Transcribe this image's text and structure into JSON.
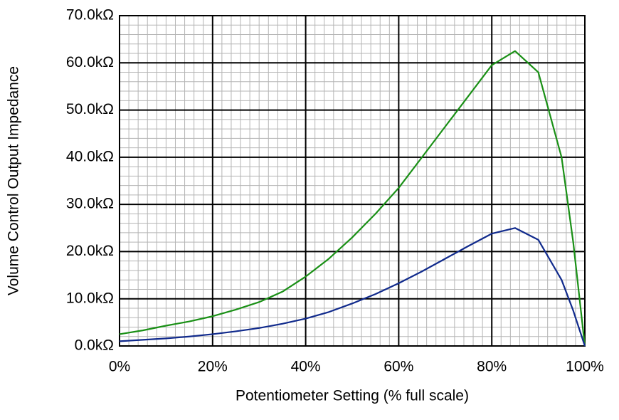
{
  "chart_data": {
    "type": "line",
    "xlabel": "Potentiometer Setting (% full scale)",
    "ylabel": "Volume Control Output Impedance",
    "x": [
      0,
      5,
      10,
      15,
      20,
      25,
      30,
      35,
      40,
      45,
      50,
      55,
      60,
      65,
      70,
      75,
      80,
      85,
      90,
      95,
      97.5,
      100
    ],
    "series": [
      {
        "name": "Green curve",
        "color": "#1a9016",
        "values": [
          2.5,
          3.3,
          4.3,
          5.2,
          6.3,
          7.7,
          9.3,
          11.5,
          14.7,
          18.5,
          23,
          28,
          33.5,
          40,
          46.5,
          53,
          59.5,
          62.5,
          58,
          40,
          22,
          0
        ]
      },
      {
        "name": "Blue curve",
        "color": "#102a8c",
        "values": [
          1,
          1.3,
          1.6,
          2,
          2.5,
          3.1,
          3.8,
          4.7,
          5.8,
          7.2,
          9,
          11,
          13.3,
          15.8,
          18.5,
          21.2,
          23.8,
          25,
          22.5,
          14,
          7.5,
          0
        ]
      }
    ],
    "xlim": [
      0,
      100
    ],
    "xticks": [
      {
        "value": 0,
        "label": "0%"
      },
      {
        "value": 20,
        "label": "20%"
      },
      {
        "value": 40,
        "label": "40%"
      },
      {
        "value": 60,
        "label": "60%"
      },
      {
        "value": 80,
        "label": "80%"
      },
      {
        "value": 100,
        "label": "100%"
      }
    ],
    "ylim": [
      0,
      70
    ],
    "yticks": [
      {
        "value": 0,
        "label": "0.0kΩ"
      },
      {
        "value": 10,
        "label": "10.0kΩ"
      },
      {
        "value": 20,
        "label": "20.0kΩ"
      },
      {
        "value": 30,
        "label": "30.0kΩ"
      },
      {
        "value": 40,
        "label": "40.0kΩ"
      },
      {
        "value": 50,
        "label": "50.0kΩ"
      },
      {
        "value": 60,
        "label": "60.0kΩ"
      },
      {
        "value": 70,
        "label": "70.0kΩ"
      }
    ],
    "xminorticks": [
      0,
      2,
      4,
      6,
      8,
      10,
      12,
      14,
      16,
      18,
      20,
      22,
      24,
      26,
      28,
      30,
      32,
      34,
      36,
      38,
      40,
      42,
      44,
      46,
      48,
      50,
      52,
      54,
      56,
      58,
      60,
      62,
      64,
      66,
      68,
      70,
      72,
      74,
      76,
      78,
      80,
      82,
      84,
      86,
      88,
      90,
      92,
      94,
      96,
      98,
      100
    ],
    "yminorticks": [
      0,
      2,
      4,
      6,
      8,
      10,
      12,
      14,
      16,
      18,
      20,
      22,
      24,
      26,
      28,
      30,
      32,
      34,
      36,
      38,
      40,
      42,
      44,
      46,
      48,
      50,
      52,
      54,
      56,
      58,
      60,
      62,
      64,
      66,
      68,
      70
    ],
    "grid": true,
    "minor_grid": true,
    "legend": false
  }
}
